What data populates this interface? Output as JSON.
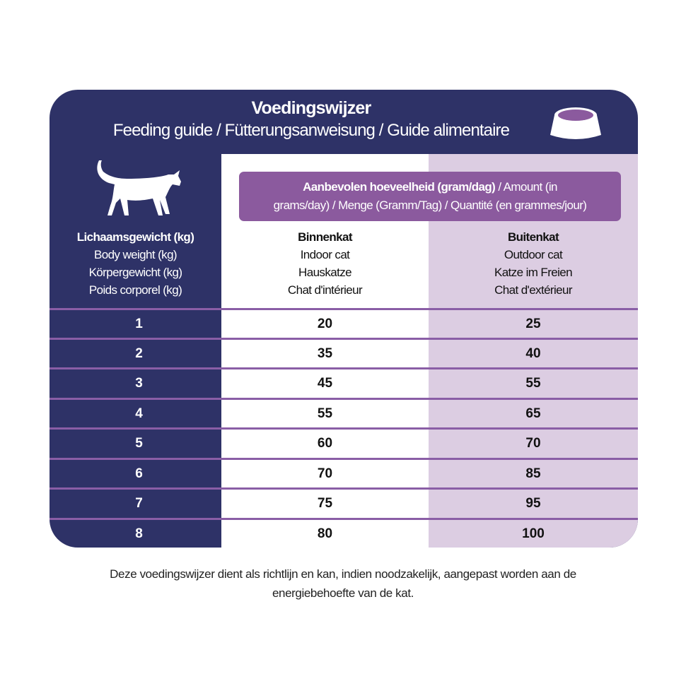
{
  "header": {
    "title": "Voedingswijzer",
    "subtitle": "Feeding guide / Fütterungsanweisung / Guide alimentaire",
    "icons": [
      "cat-icon",
      "food-bowl-icon"
    ]
  },
  "amount_banner": {
    "bold": "Aanbevolen hoeveelheid (gram/dag)",
    "line1_rest": " / Amount (in",
    "line2": "grams/day) / Menge (Gramm/Tag) /  Quantité (en grammes/jour)"
  },
  "columns": {
    "weight": [
      "Lichaamsgewicht (kg)",
      "Body weight (kg)",
      "Körpergewicht (kg)",
      "Poids corporel (kg)"
    ],
    "indoor": [
      "Binnenkat",
      "Indoor cat",
      "Hauskatze",
      "Chat d'intérieur"
    ],
    "outdoor": [
      "Buitenkat",
      "Outdoor cat",
      "Katze im Freien",
      "Chat d'extérieur"
    ]
  },
  "rows": [
    {
      "weight": "1",
      "indoor": "20",
      "outdoor": "25"
    },
    {
      "weight": "2",
      "indoor": "35",
      "outdoor": "40"
    },
    {
      "weight": "3",
      "indoor": "45",
      "outdoor": "55"
    },
    {
      "weight": "4",
      "indoor": "55",
      "outdoor": "65"
    },
    {
      "weight": "5",
      "indoor": "60",
      "outdoor": "70"
    },
    {
      "weight": "6",
      "indoor": "70",
      "outdoor": "85"
    },
    {
      "weight": "7",
      "indoor": "75",
      "outdoor": "95"
    },
    {
      "weight": "8",
      "indoor": "80",
      "outdoor": "100"
    }
  ],
  "footer": {
    "line1": "Deze voedingswijzer dient als richtlijn en kan, indien noodzakelijk, aangepast worden aan de",
    "line2": "energiebehoefte van de kat."
  },
  "colors": {
    "navy": "#2e3267",
    "purple": "#8b5a9e",
    "lavender": "#dccde2"
  }
}
